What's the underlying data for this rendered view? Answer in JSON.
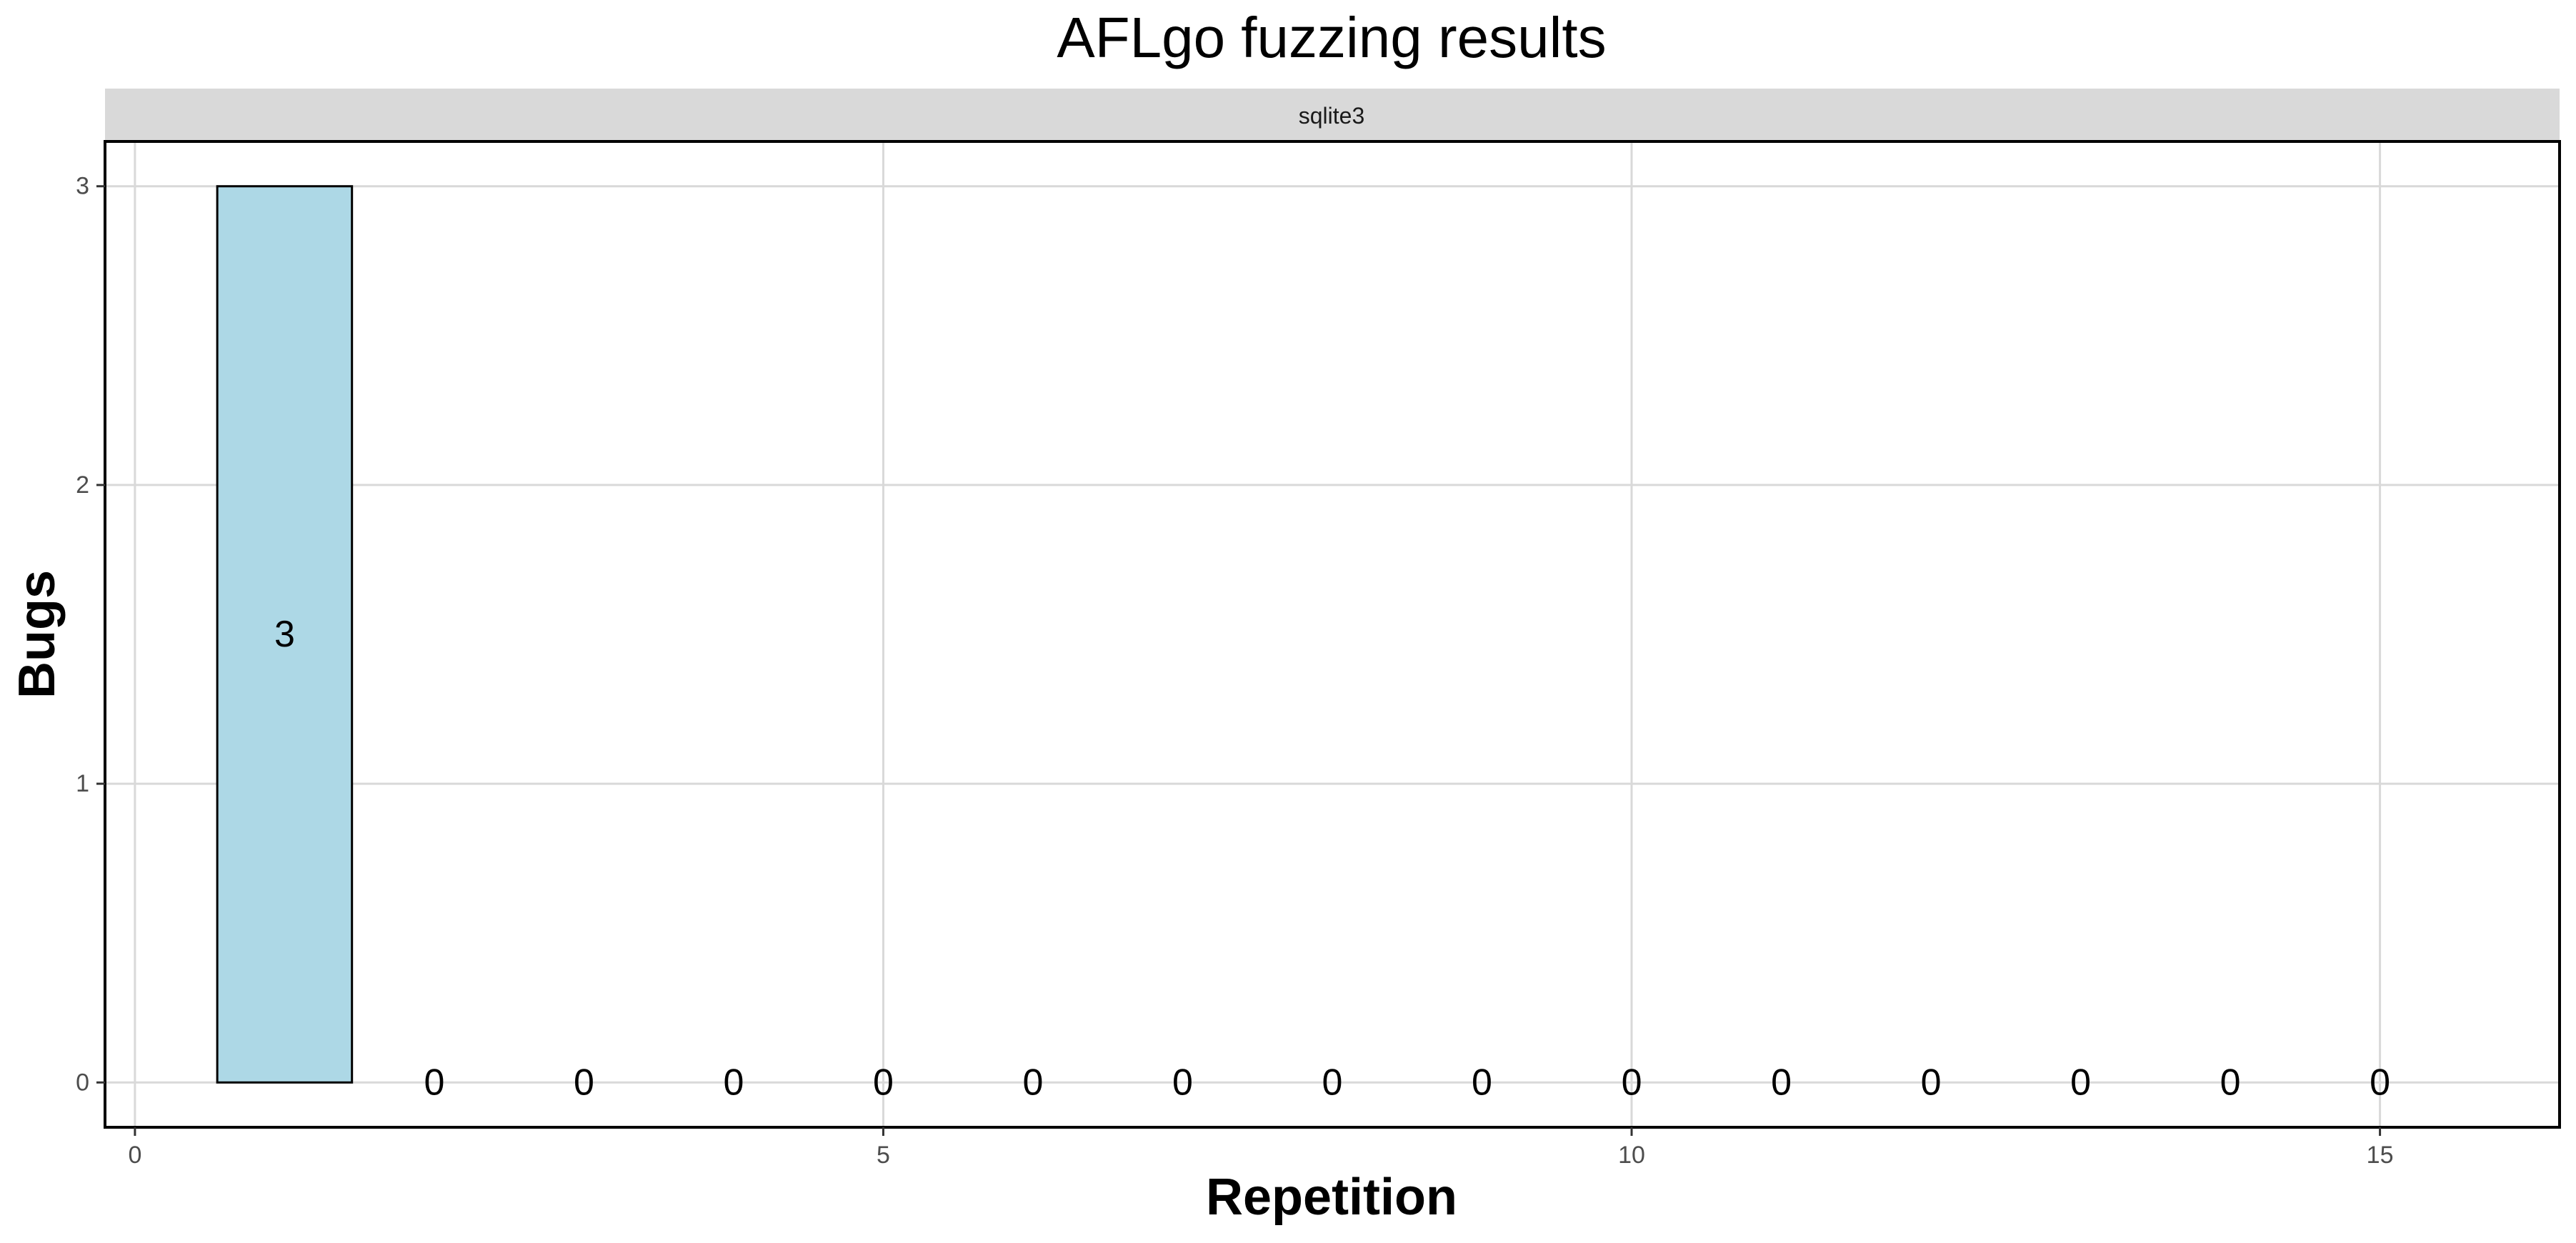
{
  "chart_data": {
    "type": "bar",
    "title": "AFLgo fuzzing results",
    "facet_label": "sqlite3",
    "xlabel": "Repetition",
    "ylabel": "Bugs",
    "x": [
      1,
      2,
      3,
      4,
      5,
      6,
      7,
      8,
      9,
      10,
      11,
      12,
      13,
      14,
      15
    ],
    "values": [
      3,
      0,
      0,
      0,
      0,
      0,
      0,
      0,
      0,
      0,
      0,
      0,
      0,
      0,
      0
    ],
    "data_labels": [
      "3",
      "0",
      "0",
      "0",
      "0",
      "0",
      "0",
      "0",
      "0",
      "0",
      "0",
      "0",
      "0",
      "0",
      "0"
    ],
    "xlim": [
      -0.2,
      16.2
    ],
    "ylim": [
      -0.15,
      3.15
    ],
    "x_ticks": [
      0,
      5,
      10,
      15
    ],
    "x_tick_labels": [
      "0",
      "5",
      "10",
      "15"
    ],
    "y_ticks": [
      0,
      1,
      2,
      3
    ],
    "y_tick_labels": [
      "0",
      "1",
      "2",
      "3"
    ],
    "bar_fill": "#add8e6",
    "bar_outline": "#000000",
    "grid": true,
    "legend": "none"
  }
}
